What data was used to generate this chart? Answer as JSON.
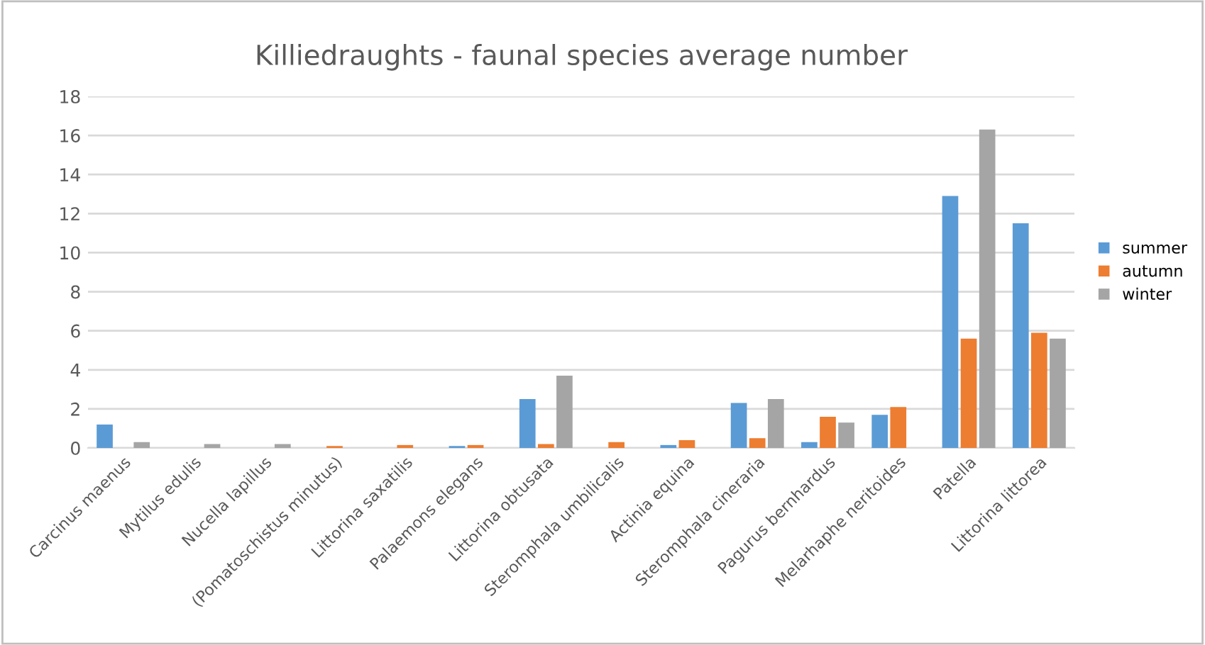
{
  "chart_data": {
    "type": "bar",
    "title": "Killiedraughts - faunal species average number",
    "categories": [
      "Carcinus maenus",
      "Mytilus edulis",
      "Nucella lapillus",
      "(Pomatoschistus minutus)",
      "Littorina saxatilis",
      "Palaemons elegans",
      "Littorina obtusata",
      "Steromphala umbilicalis",
      "Actinia equina",
      "Steromphala cineraria",
      "Pagurus bernhardus",
      "Melarhaphe neritoides",
      "Patella",
      "Littorina littorea"
    ],
    "series": [
      {
        "name": "summer",
        "color": "#5b9bd5",
        "values": [
          1.2,
          0,
          0,
          0,
          0,
          0.1,
          2.5,
          0,
          0.15,
          2.3,
          0.3,
          1.7,
          12.9,
          11.5
        ]
      },
      {
        "name": "autumn",
        "color": "#ed7d31",
        "values": [
          0,
          0,
          0,
          0.1,
          0.15,
          0.15,
          0.2,
          0.3,
          0.4,
          0.5,
          1.6,
          2.1,
          5.6,
          5.9
        ]
      },
      {
        "name": "winter",
        "color": "#a5a5a5",
        "values": [
          0.3,
          0.2,
          0.2,
          0,
          0,
          0,
          3.7,
          0,
          0,
          2.5,
          1.3,
          0,
          16.3,
          5.6
        ]
      }
    ],
    "ylim": [
      0,
      18
    ],
    "yticks": [
      0,
      2,
      4,
      6,
      8,
      10,
      12,
      14,
      16,
      18
    ],
    "grid": "y",
    "legend": "right"
  }
}
